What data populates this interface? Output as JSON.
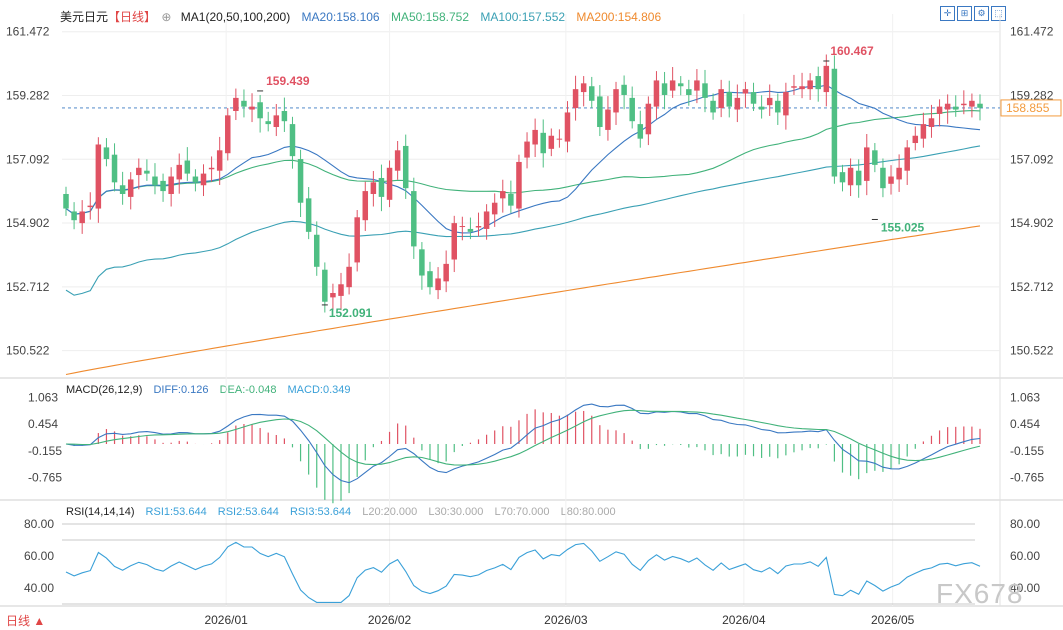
{
  "header": {
    "symbol": "美元日元",
    "period": "【日线】",
    "ma_group": "MA1(20,50,100,200)",
    "ma20": "MA20:158.106",
    "ma50": "MA50:158.752",
    "ma100": "MA100:157.552",
    "ma200": "MA200:154.806"
  },
  "macd_header": {
    "name": "MACD(26,12,9)",
    "diff": "DIFF:0.126",
    "dea": "DEA:-0.048",
    "macd": "MACD:0.349"
  },
  "rsi_header": {
    "name": "RSI(14,14,14)",
    "rsi1": "RSI1:53.644",
    "rsi2": "RSI2:53.644",
    "rsi3": "RSI3:53.644",
    "l20": "L20:20.000",
    "l30": "L30:30.000",
    "l70": "L70:70.000",
    "l80": "L80:80.000"
  },
  "bottom_tab": "日线",
  "watermark": "FX678",
  "toolbar_icons": [
    "zoom-in-icon",
    "split-view-icon",
    "settings-icon",
    "maximize-icon"
  ],
  "colors": {
    "up": "#e05263",
    "down": "#4fbf84",
    "ma20": "#3a78c2",
    "ma50": "#41b27a",
    "ma100": "#3aa0b4",
    "ma200": "#ef8a2e",
    "diff": "#3a78c2",
    "dea": "#41b27a",
    "rsi": "#3aa0d8",
    "label_red": "#e05263",
    "label_green": "#41b27a",
    "symbol": "#222222",
    "period": "#e04646"
  },
  "chart_data": [
    {
      "type": "candlestick",
      "title": "美元日元",
      "x_tick_labels": [
        "2026/01",
        "2026/02",
        "2026/03",
        "2026/04",
        "2026/05"
      ],
      "y_ticks": [
        150.522,
        152.712,
        154.902,
        157.092,
        159.282,
        161.472
      ],
      "ylim": [
        149.65,
        161.6
      ],
      "current_price": 158.855,
      "annotations": [
        {
          "text": "159.439",
          "value": 159.439,
          "kind": "high"
        },
        {
          "text": "152.091",
          "value": 152.091,
          "kind": "low"
        },
        {
          "text": "160.467",
          "value": 160.467,
          "kind": "high"
        },
        {
          "text": "155.025",
          "value": 155.025,
          "kind": "low"
        }
      ],
      "close": [
        155.4,
        155.0,
        155.3,
        155.5,
        157.6,
        157.1,
        156.3,
        155.9,
        156.4,
        156.8,
        156.6,
        156.2,
        156.0,
        156.5,
        156.9,
        156.6,
        156.3,
        156.6,
        156.8,
        157.4,
        158.6,
        159.2,
        158.9,
        158.9,
        158.5,
        158.3,
        158.6,
        158.4,
        157.2,
        155.6,
        154.6,
        153.4,
        152.2,
        152.5,
        152.8,
        153.4,
        155.1,
        156.0,
        156.3,
        155.8,
        156.8,
        157.4,
        156.1,
        154.1,
        153.1,
        152.7,
        153.0,
        153.5,
        154.9,
        154.8,
        154.6,
        154.8,
        155.3,
        155.6,
        156.0,
        155.5,
        157.0,
        157.7,
        158.1,
        157.3,
        157.9,
        157.8,
        158.7,
        159.5,
        159.7,
        159.1,
        158.2,
        158.8,
        159.5,
        159.3,
        158.4,
        157.8,
        159.0,
        159.8,
        159.3,
        159.8,
        159.6,
        159.3,
        159.8,
        159.2,
        158.7,
        159.5,
        158.9,
        159.2,
        159.5,
        159.0,
        158.8,
        159.2,
        158.7,
        159.4,
        159.6,
        159.6,
        159.8,
        159.5,
        160.3,
        156.5,
        156.3,
        156.8,
        156.2,
        157.5,
        156.9,
        156.1,
        156.5,
        156.8,
        157.5,
        157.9,
        158.3,
        158.5,
        158.9,
        159.0,
        158.8,
        159.0,
        159.1,
        158.86
      ],
      "ma20_last": 158.106,
      "ma50_last": 158.752,
      "ma100_last": 157.552,
      "ma200_last": 154.806
    },
    {
      "type": "bar+line",
      "title": "MACD(26,12,9)",
      "y_ticks": [
        -0.765,
        -0.155,
        0.454,
        1.063
      ],
      "series": [
        {
          "name": "DIFF",
          "last": 0.126
        },
        {
          "name": "DEA",
          "last": -0.048
        },
        {
          "name": "MACD",
          "last": 0.349
        }
      ]
    },
    {
      "type": "line",
      "title": "RSI(14,14,14)",
      "y_ticks": [
        40.0,
        60.0,
        80.0
      ],
      "ylim": [
        30,
        85
      ],
      "series": [
        {
          "name": "RSI1",
          "last": 53.644
        },
        {
          "name": "RSI2",
          "last": 53.644
        },
        {
          "name": "RSI3",
          "last": 53.644
        }
      ],
      "reference_lines": [
        20,
        30,
        70,
        80
      ]
    }
  ]
}
